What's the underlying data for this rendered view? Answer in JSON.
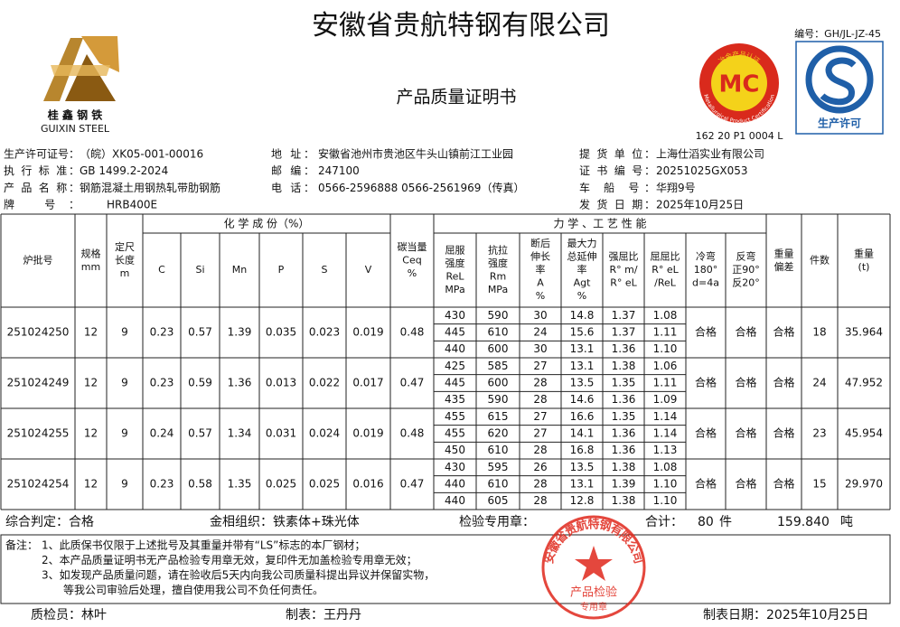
{
  "header": {
    "title": "安徽省贵航特钢有限公司",
    "doc_no": "编号：GH/JL-JZ-45",
    "logo_cn": "桂 鑫 钢 铁",
    "logo_en": "GUIXIN STEEL",
    "mc_ring": "冶金产品认证",
    "mc_en": "Metallurgical Product Certification",
    "mc_mark": "MC",
    "mc_code": "162 20 P1 0004 L",
    "qs_text": "生产许可",
    "subtitle": "产品质量证明书"
  },
  "info": [
    [
      {
        "label": "生产许可证号：",
        "value": "（皖）XK05-001-00016"
      },
      {
        "label": "地 址：",
        "value": "安徽省池州市贵池区牛头山镇前江工业园"
      },
      {
        "label": "提 货 单 位：",
        "value": "上海仕滔实业有限公司"
      }
    ],
    [
      {
        "label": "执 行 标 准：",
        "value": "GB 1499.2-2024"
      },
      {
        "label": "邮 编：",
        "value": "247100"
      },
      {
        "label": "证 书 编 号：",
        "value": "20251025GX053"
      }
    ],
    [
      {
        "label": "产 品 名 称：",
        "value": "钢筋混凝土用钢热轧带肋钢筋"
      },
      {
        "label": "电 话：",
        "value": "0566-2596888  0566-2561969（传真）"
      },
      {
        "label": "车 船 号：",
        "value": "华翔9号"
      }
    ],
    [
      {
        "label": "牌 号：",
        "value": "HRB400E"
      },
      null,
      {
        "label": "发 货 日 期：",
        "value": "2025年10月25日"
      }
    ]
  ],
  "table": {
    "chem_group": "化 学 成 份（%）",
    "mech_group": "力 学 、工 艺 性 能",
    "columns": [
      [
        "炉批号"
      ],
      [
        "规格",
        "mm"
      ],
      [
        "定尺",
        "长度",
        "m"
      ],
      [
        "C"
      ],
      [
        "Si"
      ],
      [
        "Mn"
      ],
      [
        "P"
      ],
      [
        "S"
      ],
      [
        "V"
      ],
      [
        "碳当量",
        "Ceq",
        "%"
      ],
      [
        "屈服",
        "强度",
        "ReL",
        "MPa"
      ],
      [
        "抗拉",
        "强度",
        "Rm",
        "MPa"
      ],
      [
        "断后",
        "伸长",
        "率",
        "A",
        "%"
      ],
      [
        "最大力",
        "总延伸",
        "率",
        "Agt",
        "%"
      ],
      [
        "强屈比",
        "R° m/",
        "R° eL"
      ],
      [
        "屈屈比",
        "R° eL",
        "/ReL"
      ],
      [
        "冷弯",
        "180°",
        "d=4a"
      ],
      [
        "反弯",
        "正90°",
        "反20°"
      ],
      [
        "重量",
        "偏差"
      ],
      [
        "件数"
      ],
      [
        "重量",
        "(t)"
      ]
    ],
    "batches": [
      {
        "head": [
          "251024250",
          "12",
          "9",
          "0.23",
          "0.57",
          "1.39",
          "0.035",
          "0.023",
          "0.019",
          "0.48"
        ],
        "tests": [
          [
            "430",
            "590",
            "30",
            "14.8",
            "1.37",
            "1.08"
          ],
          [
            "445",
            "610",
            "24",
            "15.6",
            "1.37",
            "1.11"
          ],
          [
            "440",
            "600",
            "30",
            "13.1",
            "1.36",
            "1.10"
          ]
        ],
        "tail": [
          "合格",
          "合格",
          "合格",
          "18",
          "35.964"
        ]
      },
      {
        "head": [
          "251024249",
          "12",
          "9",
          "0.23",
          "0.59",
          "1.36",
          "0.013",
          "0.022",
          "0.017",
          "0.47"
        ],
        "tests": [
          [
            "425",
            "585",
            "27",
            "13.1",
            "1.38",
            "1.06"
          ],
          [
            "445",
            "600",
            "28",
            "13.5",
            "1.35",
            "1.11"
          ],
          [
            "435",
            "590",
            "28",
            "14.6",
            "1.36",
            "1.09"
          ]
        ],
        "tail": [
          "合格",
          "合格",
          "合格",
          "24",
          "47.952"
        ]
      },
      {
        "head": [
          "251024255",
          "12",
          "9",
          "0.24",
          "0.57",
          "1.34",
          "0.031",
          "0.024",
          "0.019",
          "0.48"
        ],
        "tests": [
          [
            "455",
            "615",
            "27",
            "16.6",
            "1.35",
            "1.14"
          ],
          [
            "455",
            "620",
            "27",
            "14.1",
            "1.36",
            "1.14"
          ],
          [
            "450",
            "610",
            "28",
            "16.8",
            "1.36",
            "1.13"
          ]
        ],
        "tail": [
          "合格",
          "合格",
          "合格",
          "23",
          "45.954"
        ]
      },
      {
        "head": [
          "251024254",
          "12",
          "9",
          "0.23",
          "0.58",
          "1.35",
          "0.025",
          "0.025",
          "0.016",
          "0.47"
        ],
        "tests": [
          [
            "430",
            "595",
            "26",
            "13.5",
            "1.38",
            "1.08"
          ],
          [
            "440",
            "610",
            "28",
            "13.1",
            "1.39",
            "1.10"
          ],
          [
            "440",
            "605",
            "28",
            "12.8",
            "1.38",
            "1.10"
          ]
        ],
        "tail": [
          "合格",
          "合格",
          "合格",
          "15",
          "29.970"
        ]
      }
    ]
  },
  "summary": {
    "judgement": "综合判定：合格",
    "structure": "金相组织：铁素体+珠光体",
    "stamp_label": "检验专用章：",
    "total_label": "合计：",
    "pieces": "80",
    "pieces_unit": "件",
    "weight": "159.840",
    "weight_unit": "吨"
  },
  "notes": {
    "label": "备注：",
    "lines": [
      "1、此质保书仅限于上述批号及其重量并带有“LS”标志的本厂钢材；",
      "2、本产品质量证明书无产品检验专用章无效，复印件无加盖检验专用章无效；",
      "3、如发现产品质量问题，请在验收后5天内向我公司质量科提出异议并保留实物，",
      "等我公司审验后处理，擅自使用我公司不负任何责任。"
    ]
  },
  "stamp": {
    "ring": "安徽省贵航特钢有限公司",
    "center": "产品检验",
    "bottom": "专用章"
  },
  "footer": {
    "inspector": "质检员：林叶",
    "maker": "制表：王丹丹",
    "date": "制表日期：2025年10月25日"
  }
}
